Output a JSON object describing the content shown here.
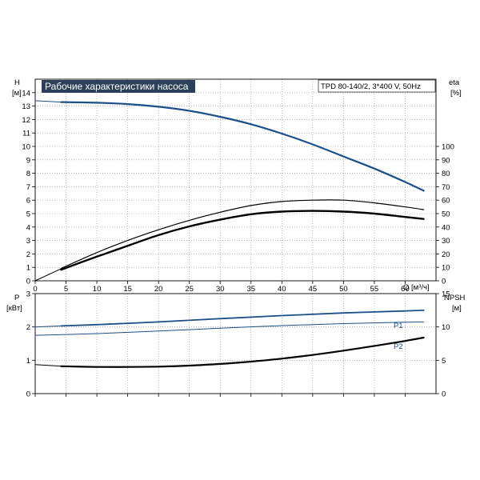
{
  "chart_data": [
    {
      "type": "line",
      "title": "Рабочие характеристики насоса",
      "info": "TPD 80-140/2, 3*400 V, 50Hz",
      "xlabel": "Q [м³/ч]",
      "ylabel_left": "H",
      "ylabel_left_unit": "[м]",
      "ylabel_right": "eta",
      "ylabel_right_unit": "[%]",
      "xlim": [
        0,
        65
      ],
      "ylim_left": [
        0,
        15
      ],
      "ylim_right": [
        0,
        150
      ],
      "x_ticks": [
        "0",
        "5",
        "10",
        "15",
        "20",
        "25",
        "30",
        "35",
        "40",
        "45",
        "50",
        "55",
        "60"
      ],
      "y_left_ticks": [
        "0",
        "1",
        "2",
        "3",
        "4",
        "5",
        "6",
        "7",
        "8",
        "9",
        "10",
        "11",
        "12",
        "13",
        "14"
      ],
      "y_right_ticks": [
        "0",
        "10",
        "20",
        "30",
        "40",
        "50",
        "60",
        "70",
        "80",
        "90",
        "100"
      ],
      "grid": true,
      "series": [
        {
          "key": "head",
          "axis": "left",
          "color": "#1b4f8a",
          "width": 2.2,
          "x": [
            4.2,
            10,
            15,
            20,
            25,
            30,
            35,
            40,
            45,
            50,
            55,
            60,
            63
          ],
          "y": [
            13.3,
            13.25,
            13.15,
            12.95,
            12.65,
            12.2,
            11.65,
            10.95,
            10.15,
            9.25,
            8.35,
            7.35,
            6.7
          ]
        },
        {
          "key": "head-ext",
          "axis": "left",
          "color": "#1b4f8a",
          "width": 1.0,
          "x": [
            0,
            4.2
          ],
          "y": [
            13.4,
            13.3
          ]
        },
        {
          "key": "eta1",
          "axis": "right",
          "color": "#000000",
          "width": 1.2,
          "x": [
            4.2,
            10,
            15,
            20,
            25,
            30,
            35,
            40,
            45,
            50,
            55,
            60,
            63
          ],
          "y": [
            9.2,
            21,
            30,
            38,
            45,
            51,
            56,
            59,
            60,
            60,
            58,
            55,
            53
          ]
        },
        {
          "key": "eta2",
          "axis": "right",
          "color": "#000000",
          "width": 2.4,
          "x": [
            4.2,
            10,
            15,
            20,
            25,
            30,
            35,
            40,
            45,
            50,
            55,
            60,
            63
          ],
          "y": [
            8.2,
            18,
            26,
            34,
            40.5,
            45.5,
            49.5,
            51.5,
            52,
            51.5,
            50,
            47.5,
            46
          ]
        },
        {
          "key": "eta-ext",
          "axis": "right",
          "color": "#000000",
          "width": 1.0,
          "x": [
            0,
            4.2
          ],
          "y": [
            0,
            9
          ]
        }
      ]
    },
    {
      "type": "line",
      "xlim": [
        0,
        65
      ],
      "ylabel_left": "P",
      "ylabel_left_unit": "[кВт]",
      "ylabel_right": "NPSH",
      "ylabel_right_unit": "[м]",
      "ylim_left": [
        0,
        3
      ],
      "ylim_right": [
        0,
        15
      ],
      "y_left_ticks": [
        "0",
        "1",
        "2",
        "3"
      ],
      "y_right_ticks": [
        "0",
        "5",
        "10",
        "15"
      ],
      "grid": true,
      "series": [
        {
          "key": "p1",
          "name": "P1",
          "axis": "left",
          "color": "#1b4f8a",
          "width": 1.8,
          "x": [
            4.2,
            10,
            20,
            30,
            40,
            50,
            60,
            63
          ],
          "y": [
            2.03,
            2.07,
            2.15,
            2.25,
            2.34,
            2.42,
            2.48,
            2.5
          ]
        },
        {
          "key": "p1-ext",
          "axis": "left",
          "color": "#1b4f8a",
          "width": 1.0,
          "x": [
            0,
            4.2
          ],
          "y": [
            2.0,
            2.03
          ]
        },
        {
          "key": "p2",
          "name": "P2",
          "axis": "left",
          "color": "#1b4f8a",
          "width": 1.0,
          "x": [
            0,
            10,
            20,
            30,
            40,
            50,
            60,
            63
          ],
          "y": [
            1.75,
            1.8,
            1.88,
            1.96,
            2.04,
            2.1,
            2.14,
            2.15
          ]
        },
        {
          "key": "npsh",
          "axis": "right",
          "color": "#000000",
          "width": 2.2,
          "x": [
            4.2,
            10,
            15,
            20,
            25,
            30,
            35,
            40,
            45,
            50,
            55,
            60,
            63
          ],
          "y": [
            4.1,
            4.0,
            4.0,
            4.05,
            4.2,
            4.45,
            4.8,
            5.25,
            5.8,
            6.45,
            7.15,
            7.9,
            8.4
          ]
        },
        {
          "key": "npsh-ext",
          "axis": "right",
          "color": "#000000",
          "width": 1.0,
          "x": [
            0,
            4.2
          ],
          "y": [
            4.35,
            4.1
          ]
        }
      ]
    }
  ]
}
